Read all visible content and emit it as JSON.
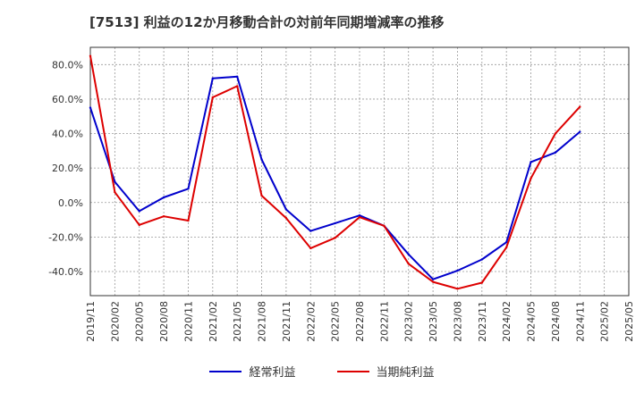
{
  "title": "[7513]  利益の12か月移動合計の対前年同期増減率の推移",
  "chart_data": {
    "type": "line",
    "x": [
      "2019/11",
      "2020/02",
      "2020/05",
      "2020/08",
      "2020/11",
      "2021/02",
      "2021/05",
      "2021/08",
      "2021/11",
      "2022/02",
      "2022/05",
      "2022/08",
      "2022/11",
      "2023/02",
      "2023/05",
      "2023/08",
      "2023/11",
      "2024/02",
      "2024/05",
      "2024/08",
      "2024/11",
      "2025/02",
      "2025/05"
    ],
    "ylim": [
      -0.54,
      0.9
    ],
    "yticks": [
      0.8,
      0.6,
      0.4,
      0.2,
      0.0,
      -0.2,
      -0.4
    ],
    "ytick_labels": [
      "80.0%",
      "60.0%",
      "40.0%",
      "20.0%",
      "0.0%",
      "-20.0%",
      "-40.0%"
    ],
    "grid": true,
    "legend_position": "bottom",
    "series": [
      {
        "name": "経常利益",
        "color": "#0000cc",
        "values": [
          0.55,
          0.12,
          -0.05,
          0.03,
          0.08,
          0.72,
          0.73,
          0.25,
          -0.04,
          -0.165,
          -0.12,
          -0.075,
          -0.135,
          -0.3,
          -0.445,
          -0.395,
          -0.33,
          -0.23,
          0.235,
          0.29,
          0.41,
          null,
          null
        ]
      },
      {
        "name": "当期純利益",
        "color": "#dd0000",
        "values": [
          0.85,
          0.06,
          -0.13,
          -0.08,
          -0.105,
          0.61,
          0.675,
          0.04,
          -0.09,
          -0.265,
          -0.205,
          -0.085,
          -0.135,
          -0.355,
          -0.46,
          -0.5,
          -0.465,
          -0.26,
          0.14,
          0.4,
          0.555,
          null,
          null
        ]
      }
    ]
  }
}
